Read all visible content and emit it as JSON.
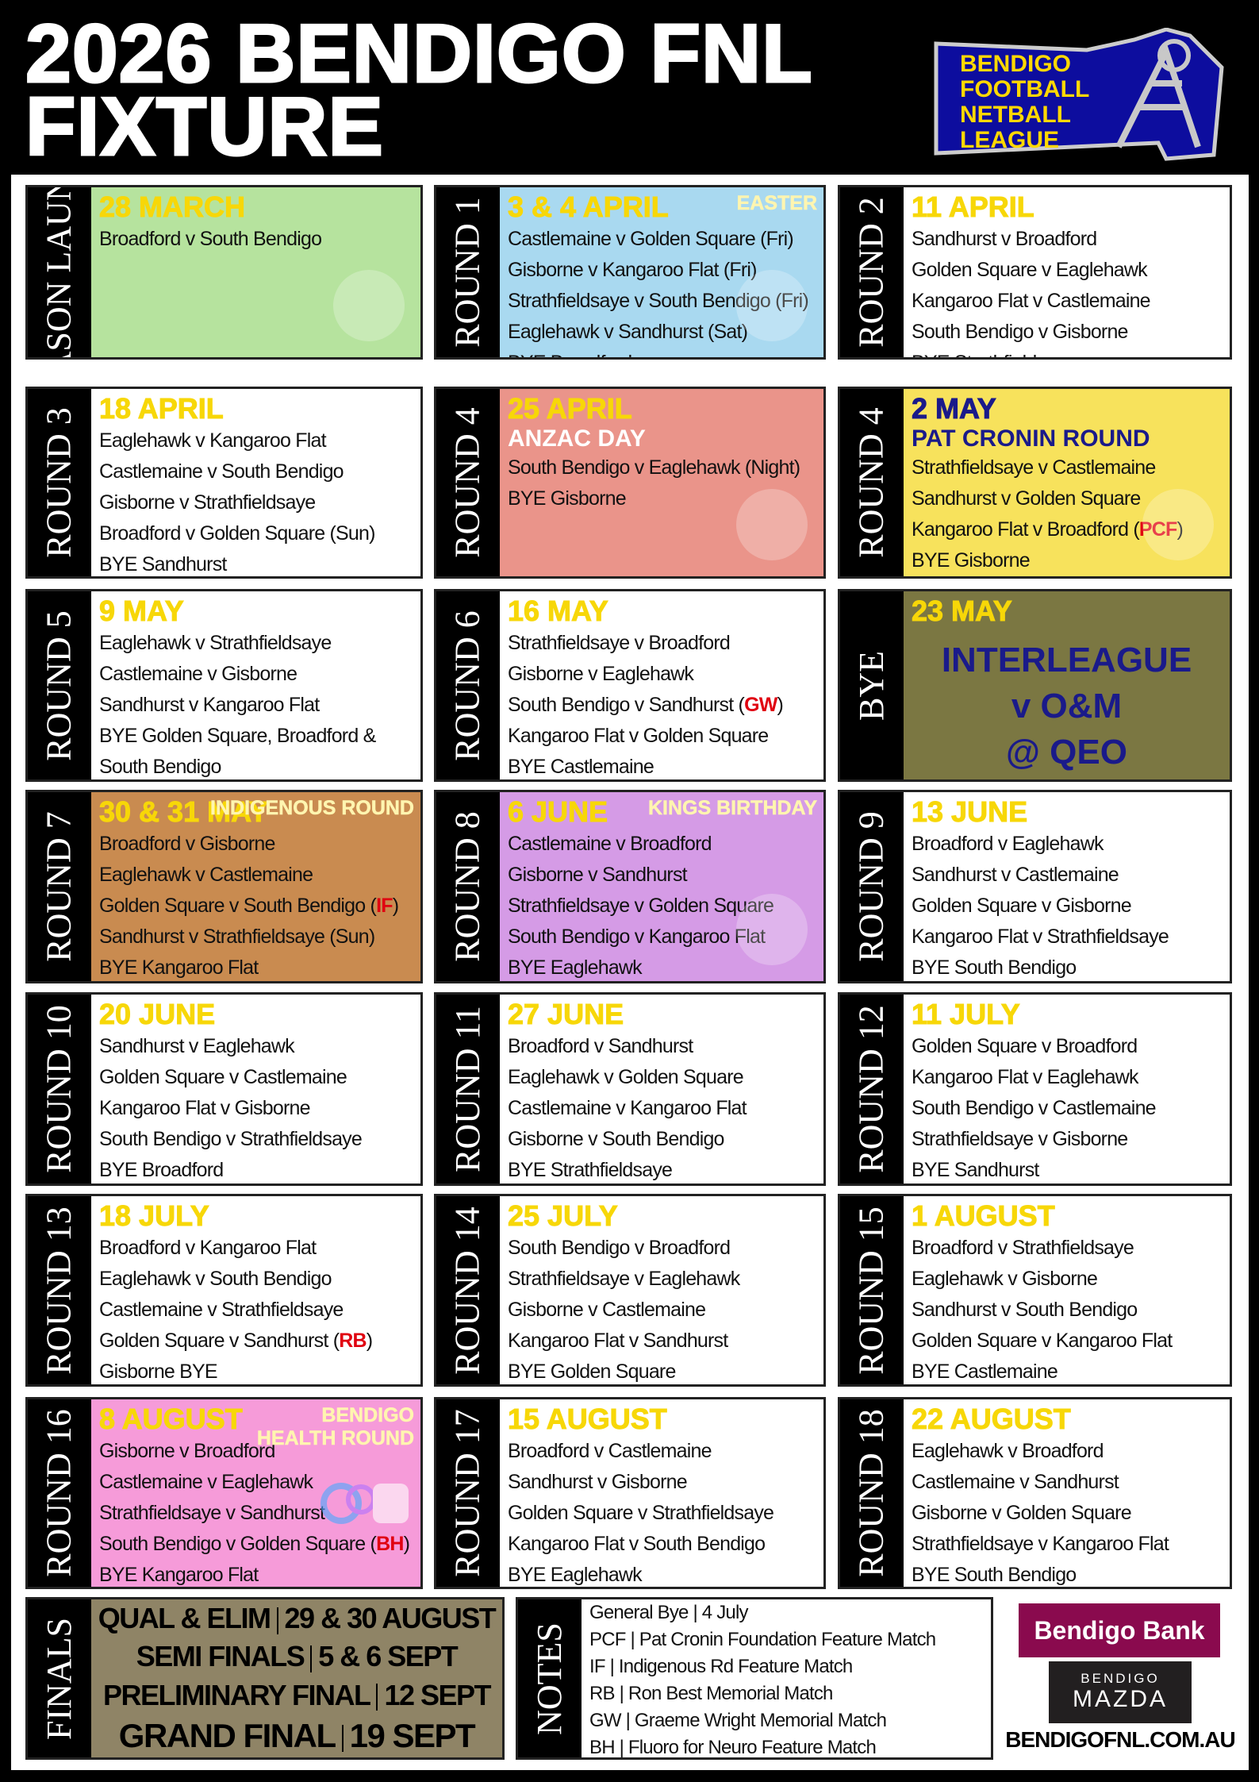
{
  "header": {
    "title_line1": "2026 BENDIGO FNL",
    "title_line2": "FIXTURE",
    "logo_text": [
      "BENDIGO",
      "FOOTBALL",
      "NETBALL",
      "LEAGUE"
    ]
  },
  "colors": {
    "date": "#f7d708",
    "code": "#e00010",
    "logo_blue": "#0d0d9e",
    "logo_yellow": "#ffd800"
  },
  "cards": [
    {
      "label": "SEASON LAUNCH",
      "date": "28 MARCH",
      "bg": "#b6e39e",
      "icon": "rocket-icon",
      "lines": [
        {
          "text": "Broadford v South Bendigo"
        }
      ]
    },
    {
      "label": "ROUND 1",
      "date": "3 & 4 APRIL",
      "tag": "EASTER",
      "bg": "#a9d9f0",
      "icon": "easter-eggs-icon",
      "lines": [
        {
          "text": "Castlemaine v Golden Square (Fri)"
        },
        {
          "text": "Gisborne v Kangaroo Flat (Fri)"
        },
        {
          "text": "Strathfieldsaye v South Bendigo (Fri)"
        },
        {
          "text": "Eaglehawk v Sandhurst (Sat)"
        },
        {
          "text": "BYE Broadford"
        }
      ]
    },
    {
      "label": "ROUND 2",
      "date": "11 APRIL",
      "lines": [
        {
          "text": "Sandhurst v Broadford"
        },
        {
          "text": "Golden Square v Eaglehawk"
        },
        {
          "text": "Kangaroo Flat v Castlemaine"
        },
        {
          "text": "South Bendigo v Gisborne"
        },
        {
          "text": "BYE Strathfieldsaye"
        }
      ]
    },
    {
      "label": "ROUND 3",
      "date": "18 APRIL",
      "lines": [
        {
          "text": "Eaglehawk v Kangaroo Flat"
        },
        {
          "text": "Castlemaine v South Bendigo"
        },
        {
          "text": "Gisborne v Strathfieldsaye"
        },
        {
          "text": "Broadford v Golden Square (Sun)"
        },
        {
          "text": "BYE Sandhurst"
        }
      ]
    },
    {
      "label": "ROUND 4",
      "date": "25 APRIL",
      "sub": "ANZAC DAY",
      "sub_color": "#ffffff",
      "bg": "#ea948a",
      "icon": "poppies-icon",
      "lines": [
        {
          "text": "South Bendigo v Eaglehawk (Night)"
        },
        {
          "text": "BYE Gisborne"
        }
      ]
    },
    {
      "label": "ROUND 4",
      "date": "2 MAY",
      "date_color": "#1a1a8a",
      "sub": "PAT CRONIN ROUND",
      "sub_color": "#1a1a8a",
      "bg": "#f7e25c",
      "icon": "owl-icon",
      "lines": [
        {
          "text": "Strathfieldsaye v Castlemaine"
        },
        {
          "text": "Sandhurst v Golden Square"
        },
        {
          "text": "Kangaroo Flat v Broadford ",
          "code": "PCF"
        },
        {
          "text": "BYE Gisborne"
        }
      ]
    },
    {
      "label": "ROUND 5",
      "date": "9 MAY",
      "lines": [
        {
          "text": "Eaglehawk v Strathfieldsaye"
        },
        {
          "text": "Castlemaine v Gisborne"
        },
        {
          "text": "Sandhurst v Kangaroo Flat"
        },
        {
          "text": "BYE Golden Square, Broadford &"
        },
        {
          "text": "South Bendigo"
        }
      ]
    },
    {
      "label": "ROUND 6",
      "date": "16 MAY",
      "lines": [
        {
          "text": "Strathfieldsaye v Broadford"
        },
        {
          "text": "Gisborne v Eaglehawk"
        },
        {
          "text": "South Bendigo v Sandhurst ",
          "code": "GW"
        },
        {
          "text": "Kangaroo Flat v Golden Square"
        },
        {
          "text": "BYE Castlemaine"
        }
      ]
    },
    {
      "label": "BYE",
      "date": "23 MAY",
      "bg": "#7b7742",
      "big": [
        "INTERLEAGUE",
        "v O&M",
        "@ QEO"
      ],
      "lines": []
    },
    {
      "label": "ROUND 7",
      "date": "30 & 31 MAY",
      "tag": "INDIGENOUS ROUND",
      "bg": "#c98b50",
      "lines": [
        {
          "text": "Broadford v Gisborne"
        },
        {
          "text": "Eaglehawk v Castlemaine"
        },
        {
          "text": "Golden Square v South Bendigo ",
          "code": "IF"
        },
        {
          "text": "Sandhurst v Strathfieldsaye (Sun)"
        },
        {
          "text": "BYE Kangaroo Flat"
        }
      ]
    },
    {
      "label": "ROUND 8",
      "date": "6 JUNE",
      "tag": "KINGS BIRTHDAY",
      "bg": "#d59be6",
      "icon": "crown-icon",
      "lines": [
        {
          "text": "Castlemaine v Broadford"
        },
        {
          "text": "Gisborne v Sandhurst"
        },
        {
          "text": "Strathfieldsaye v Golden Square"
        },
        {
          "text": "South Bendigo v Kangaroo Flat"
        },
        {
          "text": "BYE Eaglehawk"
        }
      ]
    },
    {
      "label": "ROUND 9",
      "date": "13 JUNE",
      "lines": [
        {
          "text": "Broadford v Eaglehawk"
        },
        {
          "text": "Sandhurst v Castlemaine"
        },
        {
          "text": "Golden Square v Gisborne"
        },
        {
          "text": "Kangaroo Flat v Strathfieldsaye"
        },
        {
          "text": "BYE South Bendigo"
        }
      ]
    },
    {
      "label": "ROUND 10",
      "date": "20 JUNE",
      "lines": [
        {
          "text": "Sandhurst v Eaglehawk"
        },
        {
          "text": "Golden Square v Castlemaine"
        },
        {
          "text": "Kangaroo Flat v Gisborne"
        },
        {
          "text": "South Bendigo v Strathfieldsaye"
        },
        {
          "text": "BYE Broadford"
        }
      ]
    },
    {
      "label": "ROUND 11",
      "date": "27 JUNE",
      "lines": [
        {
          "text": "Broadford v Sandhurst"
        },
        {
          "text": "Eaglehawk v Golden Square"
        },
        {
          "text": "Castlemaine v Kangaroo Flat"
        },
        {
          "text": "Gisborne v South Bendigo"
        },
        {
          "text": "BYE Strathfieldsaye"
        }
      ]
    },
    {
      "label": "ROUND 12",
      "date": "11 JULY",
      "lines": [
        {
          "text": "Golden Square v Broadford"
        },
        {
          "text": "Kangaroo Flat v Eaglehawk"
        },
        {
          "text": "South Bendigo v Castlemaine"
        },
        {
          "text": "Strathfieldsaye v Gisborne"
        },
        {
          "text": "BYE Sandhurst"
        }
      ]
    },
    {
      "label": "ROUND 13",
      "date": "18 JULY",
      "lines": [
        {
          "text": "Broadford v Kangaroo Flat"
        },
        {
          "text": "Eaglehawk v South Bendigo"
        },
        {
          "text": "Castlemaine v Strathfieldsaye"
        },
        {
          "text": "Golden Square v Sandhurst ",
          "code": "RB"
        },
        {
          "text": "Gisborne BYE"
        }
      ]
    },
    {
      "label": "ROUND 14",
      "date": "25 JULY",
      "lines": [
        {
          "text": "South Bendigo v Broadford"
        },
        {
          "text": "Strathfieldsaye v Eaglehawk"
        },
        {
          "text": "Gisborne v Castlemaine"
        },
        {
          "text": "Kangaroo Flat v Sandhurst"
        },
        {
          "text": "BYE Golden Square"
        }
      ]
    },
    {
      "label": "ROUND 15",
      "date": "1 AUGUST",
      "lines": [
        {
          "text": "Broadford v Strathfieldsaye"
        },
        {
          "text": "Eaglehawk v Gisborne"
        },
        {
          "text": "Sandhurst v South Bendigo"
        },
        {
          "text": "Golden Square v Kangaroo Flat"
        },
        {
          "text": "BYE Castlemaine"
        }
      ]
    },
    {
      "label": "ROUND 16",
      "date": "8 AUGUST",
      "tag": "BENDIGO HEALTH ROUND",
      "bg": "#f69bd9",
      "watermark": "Fluoro for Neuro",
      "lines": [
        {
          "text": "Gisborne v Broadford"
        },
        {
          "text": "Castlemaine v Eaglehawk"
        },
        {
          "text": "Strathfieldsaye v Sandhurst"
        },
        {
          "text": "South Bendigo v Golden Square ",
          "code": "BH"
        },
        {
          "text": "BYE Kangaroo Flat"
        }
      ]
    },
    {
      "label": "ROUND 17",
      "date": "15 AUGUST",
      "lines": [
        {
          "text": "Broadford v Castlemaine"
        },
        {
          "text": "Sandhurst v Gisborne"
        },
        {
          "text": "Golden Square v Strathfieldsaye"
        },
        {
          "text": "Kangaroo Flat v South Bendigo"
        },
        {
          "text": "BYE Eaglehawk"
        }
      ]
    },
    {
      "label": "ROUND 18",
      "date": "22 AUGUST",
      "lines": [
        {
          "text": "Eaglehawk v Broadford"
        },
        {
          "text": "Castlemaine v Sandhurst"
        },
        {
          "text": "Gisborne v Golden Square"
        },
        {
          "text": "Strathfieldsaye v Kangaroo Flat"
        },
        {
          "text": "BYE South Bendigo"
        }
      ]
    }
  ],
  "finals": {
    "label": "FINALS",
    "icon": "trophy-icon",
    "rows": [
      {
        "name": "QUAL & ELIM",
        "date": "29 & 30 AUGUST"
      },
      {
        "name": "SEMI FINALS",
        "date": "5 & 6 SEPT"
      },
      {
        "name": "PRELIMINARY FINAL",
        "date": "12 SEPT"
      },
      {
        "name": "GRAND FINAL",
        "date": "19 SEPT"
      }
    ]
  },
  "notes": {
    "label": "NOTES",
    "items": [
      "General Bye | 4 July",
      "PCF | Pat Cronin Foundation Feature Match",
      "IF | Indigenous Rd Feature Match",
      "RB | Ron Best Memorial Match",
      "GW | Graeme Wright Memorial Match",
      "BH | Fluoro for Neuro Feature Match"
    ]
  },
  "sponsors": {
    "bank": "Bendigo Bank",
    "mazda_top": "BENDIGO",
    "mazda_bottom": "MAZDA",
    "website": "BENDIGOFNL.COM.AU"
  }
}
